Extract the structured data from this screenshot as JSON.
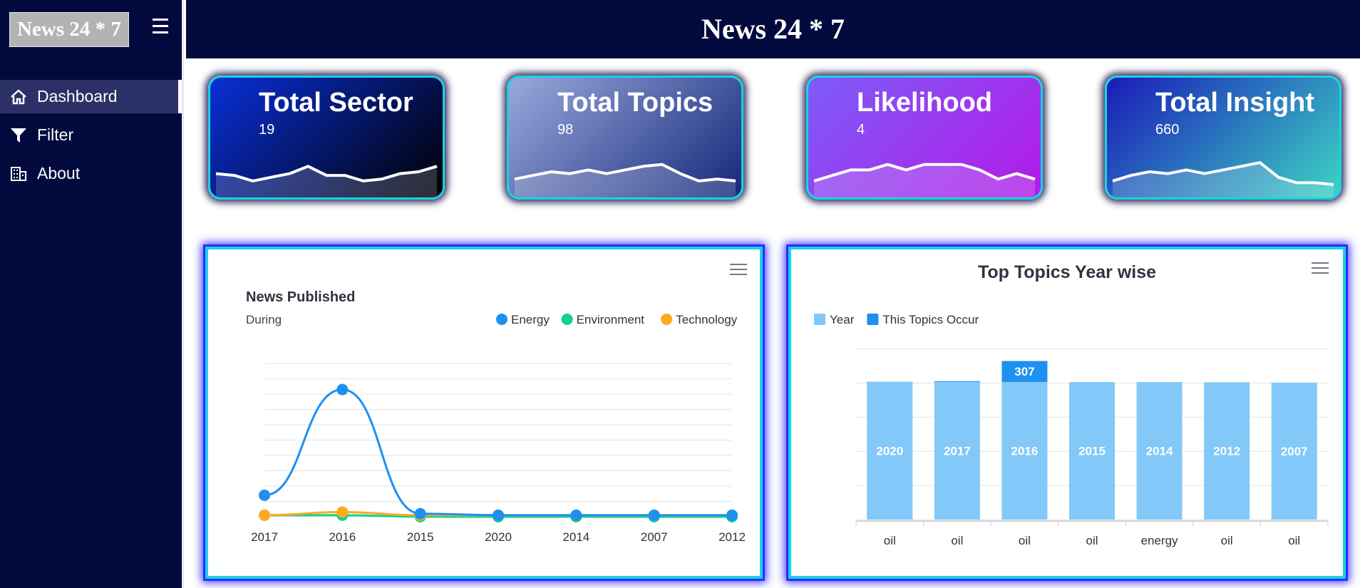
{
  "brand": {
    "logo_text": "News 24 * 7",
    "header_title": "News 24 * 7"
  },
  "sidebar": {
    "items": [
      {
        "label": "Dashboard",
        "icon": "home-icon"
      },
      {
        "label": "Filter",
        "icon": "filter-icon"
      },
      {
        "label": "About",
        "icon": "building-icon"
      }
    ]
  },
  "cards": [
    {
      "title": "Total Sector",
      "value": "19",
      "gradient": [
        "#0a2fd8",
        "#000000"
      ],
      "spark": [
        6,
        5,
        2,
        4,
        6,
        10,
        5,
        5,
        2,
        3,
        6,
        7,
        10
      ]
    },
    {
      "title": "Total Topics",
      "value": "98",
      "gradient": [
        "#9aa9dc",
        "#14287a"
      ],
      "spark": [
        3,
        5,
        7,
        6,
        8,
        6,
        8,
        10,
        11,
        6,
        2,
        3,
        2
      ]
    },
    {
      "title": "Likelihood",
      "value": "4",
      "gradient": [
        "#7d5cf7",
        "#b31ae8"
      ],
      "spark": [
        2,
        5,
        8,
        8,
        11,
        8,
        11,
        11,
        11,
        8,
        3,
        6,
        3
      ]
    },
    {
      "title": "Total Insight",
      "value": "660",
      "gradient": [
        "#1a1ab8",
        "#3cd4c4"
      ],
      "spark": [
        2,
        5,
        7,
        6,
        8,
        6,
        8,
        10,
        12,
        4,
        1,
        1,
        0
      ]
    }
  ],
  "chart_data": [
    {
      "type": "line",
      "title": "News Published",
      "subtitle": "During",
      "categories": [
        "2017",
        "2016",
        "2015",
        "2020",
        "2014",
        "2007",
        "2012"
      ],
      "ylim": [
        0,
        100
      ],
      "series": [
        {
          "name": "Energy",
          "color": "#1e90f0",
          "values": [
            14,
            83,
            2,
            1,
            1,
            1,
            1
          ]
        },
        {
          "name": "Environment",
          "color": "#10d18f",
          "values": [
            1,
            1,
            0,
            0,
            0,
            0,
            0
          ]
        },
        {
          "name": "Technology",
          "color": "#fbab1c",
          "values": [
            1,
            3,
            1,
            1,
            1,
            1,
            1
          ]
        }
      ],
      "legend": "top-right",
      "grid": true
    },
    {
      "type": "bar",
      "title": "Top Topics Year wise",
      "categories": [
        "oil",
        "oil",
        "oil",
        "oil",
        "energy",
        "oil",
        "oil"
      ],
      "series": [
        {
          "name": "Year",
          "color": "#82c8f8",
          "values": [
            2020,
            2017,
            2016,
            2015,
            2014,
            2012,
            2007
          ],
          "labels": [
            "2020",
            "2017",
            "2016",
            "2015",
            "2014",
            "2012",
            "2007"
          ]
        },
        {
          "name": "This Topics Occur",
          "color": "#1e90f0",
          "values": [
            0,
            11,
            307,
            0,
            0,
            0,
            0
          ],
          "labels": [
            "",
            "",
            "307",
            "",
            "",
            "",
            ""
          ]
        }
      ],
      "stacked": true,
      "ylim": [
        0,
        2600
      ],
      "legend": "top-left",
      "grid": true
    }
  ]
}
